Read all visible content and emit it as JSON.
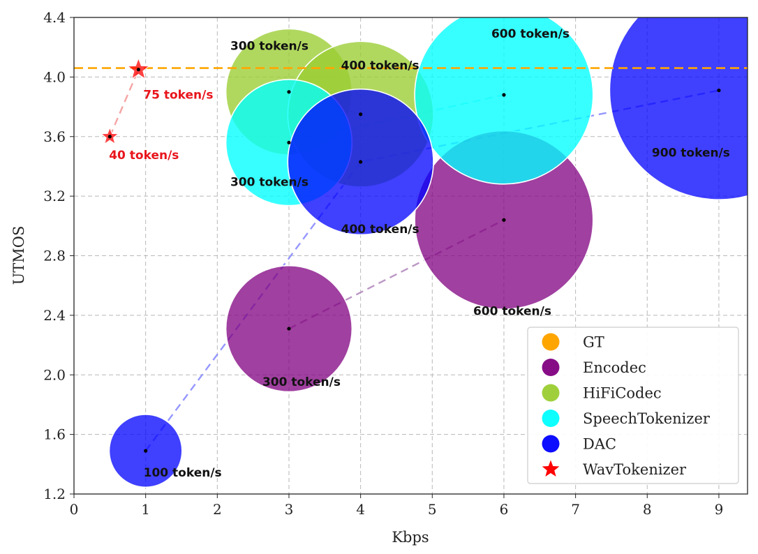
{
  "chart_data": {
    "type": "scatter",
    "xlabel": "Kbps",
    "ylabel": "UTMOS",
    "xlim": [
      0,
      9.4
    ],
    "ylim": [
      1.2,
      4.4
    ],
    "xticks": [
      "0",
      "1",
      "2",
      "3",
      "4",
      "5",
      "6",
      "7",
      "8",
      "9"
    ],
    "yticks": [
      "1.2",
      "1.6",
      "2.0",
      "2.4",
      "2.8",
      "3.2",
      "3.6",
      "4.0",
      "4.4"
    ],
    "grid": true,
    "legend_position": "bottom-right",
    "gt": {
      "name": "GT",
      "y": 4.06,
      "color": "#ffa500"
    },
    "series": [
      {
        "name": "Encodec",
        "color": "#800080",
        "marker": "circle",
        "points": [
          {
            "x": 3,
            "y": 2.31,
            "tokens": 300,
            "label": "300 token/s"
          },
          {
            "x": 6,
            "y": 3.04,
            "tokens": 600,
            "label": "600 token/s"
          }
        ]
      },
      {
        "name": "HiFiCodec",
        "color": "#9acd32",
        "marker": "circle",
        "points": [
          {
            "x": 3,
            "y": 3.9,
            "tokens": 300,
            "label": "300 token/s"
          },
          {
            "x": 4,
            "y": 3.75,
            "tokens": 400,
            "label": "400 token/s"
          }
        ]
      },
      {
        "name": "SpeechTokenizer",
        "color": "#00ffff",
        "marker": "circle",
        "points": [
          {
            "x": 3,
            "y": 3.56,
            "tokens": 300,
            "label": "300 token/s"
          },
          {
            "x": 6,
            "y": 3.88,
            "tokens": 600,
            "label": "600 token/s"
          }
        ]
      },
      {
        "name": "DAC",
        "color": "#0000ff",
        "marker": "circle",
        "points": [
          {
            "x": 1,
            "y": 1.49,
            "tokens": 100,
            "label": "100 token/s"
          },
          {
            "x": 4,
            "y": 3.43,
            "tokens": 400,
            "label": "400 token/s"
          },
          {
            "x": 9,
            "y": 3.91,
            "tokens": 900,
            "label": "900 token/s"
          }
        ]
      },
      {
        "name": "WavTokenizer",
        "color": "#ff0000",
        "marker": "star",
        "points": [
          {
            "x": 0.5,
            "y": 3.6,
            "tokens": 40,
            "label": "40 token/s"
          },
          {
            "x": 0.9,
            "y": 4.05,
            "tokens": 75,
            "label": "75 token/s"
          }
        ]
      }
    ]
  }
}
